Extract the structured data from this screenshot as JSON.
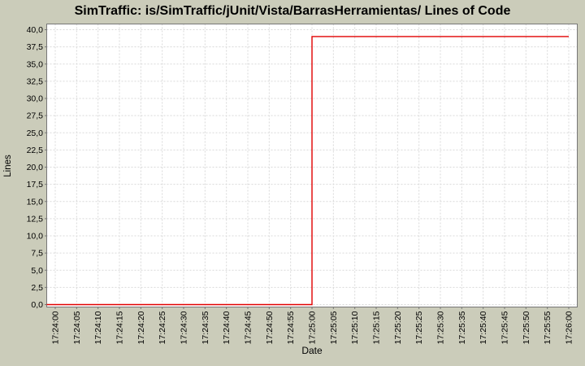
{
  "chart": {
    "title": "SimTraffic: is/SimTraffic/jUnit/Vista/BarrasHerramientas/ Lines of Code",
    "xlabel": "Date",
    "ylabel": "Lines"
  },
  "colors": {
    "background": "#cbccba",
    "plot_background": "#ffffff",
    "gridline": "#d9d9d9",
    "axis_border": "#777777",
    "series_line": "#e00000",
    "text": "#000000"
  },
  "chart_data": {
    "type": "line",
    "line_style": "step",
    "title": "SimTraffic: is/SimTraffic/jUnit/Vista/BarrasHerramientas/ Lines of Code",
    "xlabel": "Date",
    "ylabel": "Lines",
    "grid": true,
    "legend": false,
    "ylim": [
      0,
      40
    ],
    "y_tick_interval": 2.5,
    "y_tick_labels": [
      "0,0",
      "2,5",
      "5,0",
      "7,5",
      "10,0",
      "12,5",
      "15,0",
      "17,5",
      "20,0",
      "22,5",
      "25,0",
      "27,5",
      "30,0",
      "32,5",
      "35,0",
      "37,5",
      "40,0"
    ],
    "x_tick_interval_seconds": 5,
    "x_tick_labels": [
      "17:24:00",
      "17:24:05",
      "17:24:10",
      "17:24:15",
      "17:24:20",
      "17:24:25",
      "17:24:30",
      "17:24:35",
      "17:24:40",
      "17:24:45",
      "17:24:50",
      "17:24:55",
      "17:25:00",
      "17:25:05",
      "17:25:10",
      "17:25:15",
      "17:25:20",
      "17:25:25",
      "17:25:30",
      "17:25:35",
      "17:25:40",
      "17:25:45",
      "17:25:50",
      "17:25:55",
      "17:26:00"
    ],
    "series": [
      {
        "name": "Lines of Code",
        "color": "#e00000",
        "points": [
          {
            "time": "17:24:00",
            "seconds": 0,
            "value": 0
          },
          {
            "time": "17:25:00",
            "seconds": 60,
            "value": 0
          },
          {
            "time": "17:25:00",
            "seconds": 60,
            "value": 39
          },
          {
            "time": "17:26:00",
            "seconds": 120,
            "value": 39
          }
        ]
      }
    ]
  }
}
